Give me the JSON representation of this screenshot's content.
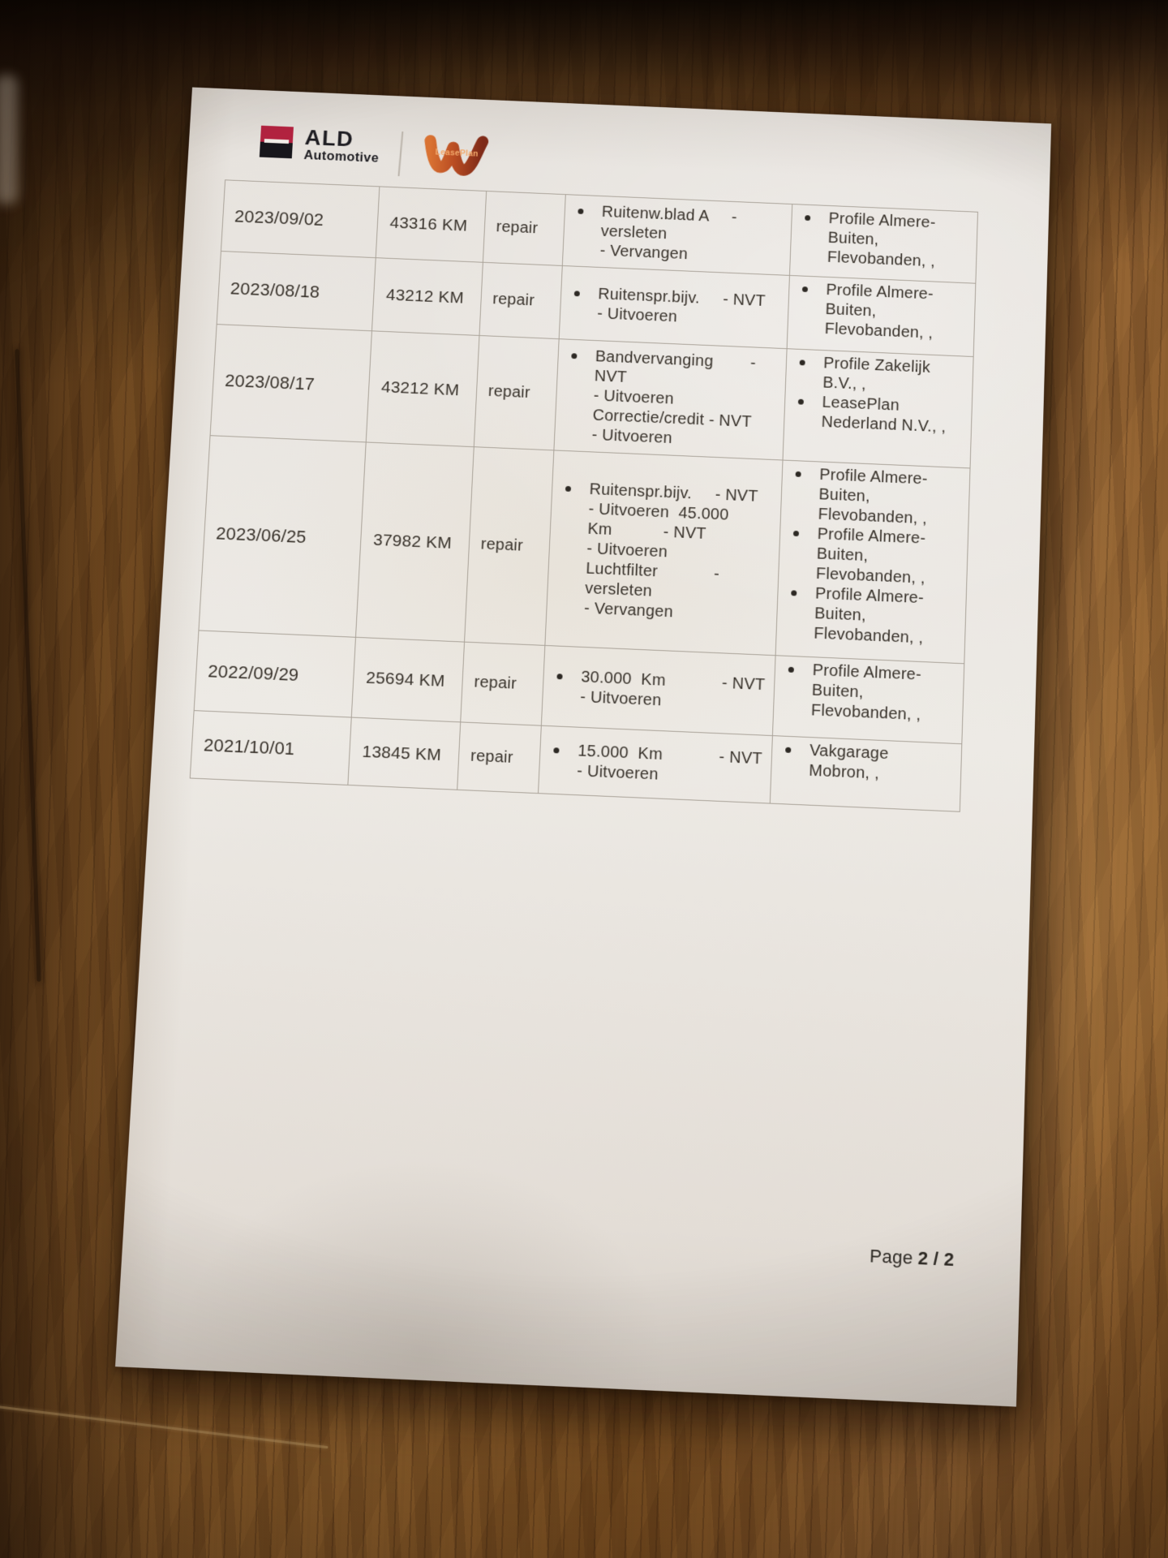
{
  "brand": {
    "ald": {
      "title": "ALD",
      "subtitle": "Automotive"
    },
    "leaseplan": {
      "label": "LeasePlan"
    }
  },
  "table": {
    "rows": [
      {
        "date": "2023/09/02",
        "mileage": "43316 KM",
        "service_type": "repair",
        "work_items": [
          {
            "lines": [
              "Ruitenw.blad A     -",
              "versleten",
              "- Vervangen"
            ]
          }
        ],
        "suppliers": [
          {
            "lines": [
              "Profile Almere-",
              "Buiten,",
              "Flevobanden, ,"
            ]
          }
        ]
      },
      {
        "date": "2023/08/18",
        "mileage": "43212 KM",
        "service_type": "repair",
        "work_items": [
          {
            "lines": [
              "Ruitenspr.bijv.     - NVT",
              "- Uitvoeren"
            ]
          }
        ],
        "suppliers": [
          {
            "lines": [
              "Profile Almere-",
              "Buiten,",
              "Flevobanden, ,"
            ]
          }
        ]
      },
      {
        "date": "2023/08/17",
        "mileage": "43212 KM",
        "service_type": "repair",
        "work_items": [
          {
            "lines": [
              "Bandvervanging        -",
              "NVT",
              "- Uitvoeren",
              "Correctie/credit - NVT",
              "- Uitvoeren"
            ]
          }
        ],
        "suppliers": [
          {
            "lines": [
              "Profile Zakelijk",
              "B.V., ,"
            ]
          },
          {
            "lines": [
              "LeasePlan",
              "Nederland N.V., ,"
            ]
          }
        ]
      },
      {
        "date": "2023/06/25",
        "mileage": "37982 KM",
        "service_type": "repair",
        "work_items": [
          {
            "lines": [
              "Ruitenspr.bijv.     - NVT",
              "- Uitvoeren  45.000",
              "Km           - NVT",
              "- Uitvoeren",
              "Luchtfilter            -",
              "versleten",
              "- Vervangen"
            ]
          }
        ],
        "suppliers": [
          {
            "lines": [
              "Profile Almere-",
              "Buiten,",
              "Flevobanden, ,"
            ]
          },
          {
            "lines": [
              "Profile Almere-",
              "Buiten,",
              "Flevobanden, ,"
            ]
          },
          {
            "lines": [
              "Profile Almere-",
              "Buiten,",
              "Flevobanden, ,"
            ]
          }
        ]
      },
      {
        "date": "2022/09/29",
        "mileage": "25694 KM",
        "service_type": "repair",
        "work_items": [
          {
            "lines": [
              "30.000  Km            - NVT",
              "- Uitvoeren"
            ]
          }
        ],
        "suppliers": [
          {
            "lines": [
              "Profile Almere-",
              "Buiten,",
              "Flevobanden, ,"
            ]
          }
        ]
      },
      {
        "date": "2021/10/01",
        "mileage": "13845 KM",
        "service_type": "repair",
        "work_items": [
          {
            "lines": [
              "15.000  Km            - NVT",
              "- Uitvoeren"
            ]
          }
        ],
        "suppliers": [
          {
            "lines": [
              "Vakgarage",
              "Mobron, ,"
            ]
          }
        ]
      }
    ]
  },
  "footer": {
    "label": "Page",
    "value": "2 / 2"
  },
  "colors": {
    "wood_mid": "#7d5226",
    "paper": "#e9e5e0",
    "text": "#39332c",
    "grid": "#a9a298",
    "ald_red": "#b32340",
    "ald_black": "#17161b",
    "lp_orange": "#d97232",
    "lp_dark": "#7e2a18"
  }
}
